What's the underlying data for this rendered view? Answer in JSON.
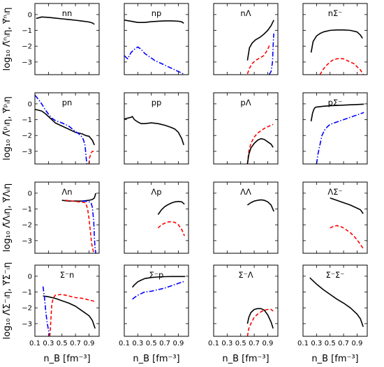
{
  "chart_data": {
    "type": "line",
    "layout": "4x4 grid of panels",
    "xlim": [
      0.1,
      1.05
    ],
    "ylim": [
      -3.8,
      0.7
    ],
    "x_ticks": [
      0.1,
      0.3,
      0.5,
      0.7,
      0.9
    ],
    "x_tick_labels": [
      "0.1",
      "0.3",
      "0.5",
      "0.7",
      "0.9"
    ],
    "y_ticks": [
      0,
      -1,
      -2,
      -3
    ],
    "y_tick_labels": [
      "0",
      "−1",
      "−2",
      "−3"
    ],
    "xlabel": "n_B [fm⁻³]",
    "row_ylabels": [
      "log₁₀ Λ̃ⁿᵢη, Υ̃ⁿᵢη",
      "log₁₀ Λ̃ᵖᵢη, Υ̃ᵖᵢη",
      "log₁₀ Λ̃Λᵢη, Υ̃Λᵢη",
      "log₁₀ Λ̃Σ⁻ᵢη, Υ̃Σ⁻ᵢη"
    ],
    "series_styles": {
      "black": {
        "color": "#000000",
        "dash": "solid"
      },
      "red": {
        "color": "#ff0000",
        "dash": "dashed"
      },
      "blue": {
        "color": "#0000ff",
        "dash": "dashdot"
      }
    },
    "panels": [
      {
        "title": "nn",
        "series": [
          {
            "style": "black",
            "x": [
              0.12,
              0.2,
              0.3,
              0.4,
              0.5,
              0.6,
              0.7,
              0.8,
              0.9,
              0.95,
              0.98
            ],
            "y": [
              -0.25,
              -0.15,
              -0.18,
              -0.22,
              -0.27,
              -0.31,
              -0.36,
              -0.41,
              -0.47,
              -0.53,
              -0.62
            ]
          }
        ]
      },
      {
        "title": "np",
        "series": [
          {
            "style": "black",
            "x": [
              0.1,
              0.2,
              0.3,
              0.4,
              0.5,
              0.6,
              0.7,
              0.8,
              0.9,
              0.95,
              0.98
            ],
            "y": [
              -0.35,
              -0.42,
              -0.5,
              -0.5,
              -0.45,
              -0.42,
              -0.4,
              -0.4,
              -0.42,
              -0.46,
              -0.55
            ]
          },
          {
            "style": "blue",
            "x": [
              0.1,
              0.15,
              0.2,
              0.25,
              0.3,
              0.35,
              0.4,
              0.45,
              0.5,
              0.55,
              0.6,
              0.65,
              0.7,
              0.75,
              0.8,
              0.85,
              0.9,
              0.95,
              0.99
            ],
            "y": [
              -2.6,
              -2.8,
              -2.4,
              -2.2,
              -2.05,
              -2.2,
              -2.45,
              -2.6,
              -2.75,
              -2.9,
              -3.0,
              -3.1,
              -3.2,
              -3.3,
              -3.4,
              -3.5,
              -3.6,
              -3.7,
              -3.8
            ]
          }
        ]
      },
      {
        "title": "nΛ",
        "series": [
          {
            "style": "black",
            "x": [
              0.6,
              0.63,
              0.67,
              0.72,
              0.78,
              0.84,
              0.9,
              0.95,
              0.99
            ],
            "y": [
              -2.9,
              -2.1,
              -1.8,
              -1.6,
              -1.45,
              -1.25,
              -1.0,
              -0.7,
              -0.35
            ]
          },
          {
            "style": "red",
            "x": [
              0.6,
              0.63,
              0.67,
              0.72,
              0.78,
              0.84,
              0.88,
              0.91,
              0.93
            ],
            "y": [
              -3.75,
              -3.4,
              -3.1,
              -2.9,
              -2.75,
              -2.6,
              -2.35,
              -2.1,
              -1.9
            ]
          },
          {
            "style": "blue",
            "x": [
              0.92,
              0.95,
              0.97,
              0.98,
              0.985,
              0.99
            ],
            "y": [
              -3.8,
              -3.6,
              -3.0,
              -2.0,
              -1.5,
              -1.2
            ]
          }
        ]
      },
      {
        "title": "nΣ⁻",
        "series": [
          {
            "style": "black",
            "x": [
              0.22,
              0.25,
              0.3,
              0.35,
              0.4,
              0.5,
              0.6,
              0.7,
              0.8,
              0.9,
              0.95,
              0.98
            ],
            "y": [
              -2.4,
              -1.7,
              -1.35,
              -1.2,
              -1.1,
              -1.0,
              -0.97,
              -0.97,
              -1.0,
              -1.1,
              -1.3,
              -1.5
            ]
          },
          {
            "style": "red",
            "x": [
              0.35,
              0.4,
              0.45,
              0.5,
              0.55,
              0.6,
              0.65,
              0.7,
              0.75,
              0.8,
              0.85,
              0.9,
              0.95,
              0.99
            ],
            "y": [
              -3.8,
              -3.45,
              -3.2,
              -3.0,
              -2.85,
              -2.8,
              -2.78,
              -2.8,
              -2.9,
              -3.0,
              -3.1,
              -3.3,
              -3.5,
              -3.8
            ]
          }
        ]
      },
      {
        "title": "pn",
        "series": [
          {
            "style": "black",
            "x": [
              0.1,
              0.15,
              0.2,
              0.25,
              0.3,
              0.4,
              0.5,
              0.6,
              0.7,
              0.8,
              0.85,
              0.9,
              0.95,
              0.98
            ],
            "y": [
              -0.35,
              -0.4,
              -0.45,
              -0.6,
              -0.8,
              -1.2,
              -1.4,
              -1.6,
              -1.8,
              -1.9,
              -2.0,
              -2.05,
              -2.3,
              -2.6
            ]
          },
          {
            "style": "blue",
            "x": [
              0.1,
              0.15,
              0.2,
              0.25,
              0.3,
              0.35,
              0.4,
              0.5,
              0.6,
              0.7,
              0.75,
              0.8,
              0.82,
              0.84,
              0.85,
              0.86,
              0.87
            ],
            "y": [
              0.55,
              0.3,
              0.0,
              -0.35,
              -0.65,
              -0.9,
              -1.05,
              -1.2,
              -1.4,
              -1.75,
              -1.9,
              -2.1,
              -2.3,
              -2.6,
              -3.0,
              -3.5,
              -3.8
            ]
          },
          {
            "style": "red",
            "x": [
              0.9,
              0.91,
              0.93,
              0.95,
              0.97
            ],
            "y": [
              -3.8,
              -3.4,
              -3.1,
              -3.0,
              -3.0
            ]
          }
        ]
      },
      {
        "title": "pp",
        "series": [
          {
            "style": "black",
            "x": [
              0.1,
              0.15,
              0.2,
              0.22,
              0.25,
              0.3,
              0.35,
              0.4,
              0.5,
              0.6,
              0.7,
              0.8,
              0.85,
              0.9,
              0.95,
              0.98
            ],
            "y": [
              -0.95,
              -0.9,
              -0.85,
              -0.8,
              -1.0,
              -1.15,
              -1.25,
              -1.25,
              -1.2,
              -1.25,
              -1.35,
              -1.5,
              -1.6,
              -1.8,
              -2.2,
              -2.6
            ]
          }
        ]
      },
      {
        "title": "pΛ",
        "series": [
          {
            "style": "red",
            "x": [
              0.6,
              0.62,
              0.65,
              0.7,
              0.75,
              0.8,
              0.85,
              0.9,
              0.95,
              0.98
            ],
            "y": [
              -3.8,
              -3.0,
              -2.5,
              -2.1,
              -1.85,
              -1.7,
              -1.55,
              -1.45,
              -1.35,
              -1.3
            ]
          },
          {
            "style": "black",
            "x": [
              0.6,
              0.62,
              0.65,
              0.7,
              0.75,
              0.8,
              0.85,
              0.9,
              0.95,
              0.98
            ],
            "y": [
              -3.8,
              -3.2,
              -2.8,
              -2.5,
              -2.3,
              -2.2,
              -2.25,
              -2.4,
              -2.55,
              -2.75
            ]
          }
        ]
      },
      {
        "title": "pΣ⁻",
        "series": [
          {
            "style": "black",
            "x": [
              0.22,
              0.24,
              0.26,
              0.28,
              0.3,
              0.4,
              0.5,
              0.6,
              0.7,
              0.8,
              0.9,
              1.0
            ],
            "y": [
              -1.1,
              -0.6,
              -0.35,
              -0.22,
              -0.2,
              -0.15,
              -0.12,
              -0.1,
              -0.08,
              -0.06,
              -0.04,
              -0.02
            ]
          },
          {
            "style": "blue",
            "x": [
              0.3,
              0.32,
              0.35,
              0.38,
              0.42,
              0.46,
              0.5,
              0.6,
              0.7,
              0.8,
              0.9,
              1.0
            ],
            "y": [
              -3.8,
              -3.2,
              -2.6,
              -2.0,
              -1.65,
              -1.45,
              -1.3,
              -1.15,
              -1.0,
              -0.85,
              -0.7,
              -0.55
            ]
          }
        ]
      },
      {
        "title": "Λn",
        "series": [
          {
            "style": "black",
            "x": [
              0.5,
              0.6,
              0.7,
              0.8,
              0.9,
              0.95,
              0.98,
              0.99,
              1.0
            ],
            "y": [
              -0.45,
              -0.5,
              -0.5,
              -0.5,
              -0.45,
              -0.4,
              -0.3,
              -0.15,
              0.0
            ]
          },
          {
            "style": "red",
            "x": [
              0.55,
              0.65,
              0.75,
              0.85,
              0.88,
              0.9,
              0.92,
              0.94,
              0.96,
              0.97
            ],
            "y": [
              -0.45,
              -0.5,
              -0.55,
              -0.6,
              -1.0,
              -1.6,
              -2.4,
              -3.2,
              -3.6,
              -3.8
            ]
          },
          {
            "style": "blue",
            "x": [
              0.8,
              0.85,
              0.9,
              0.93,
              0.95,
              0.97,
              0.98,
              0.99,
              1.0
            ],
            "y": [
              -0.5,
              -0.5,
              -0.55,
              -0.6,
              -0.9,
              -1.8,
              -2.8,
              -3.5,
              -3.8
            ]
          }
        ]
      },
      {
        "title": "Λp",
        "series": [
          {
            "style": "black",
            "x": [
              0.6,
              0.65,
              0.7,
              0.75,
              0.8,
              0.85,
              0.9,
              0.95,
              0.99
            ],
            "y": [
              -1.35,
              -1.05,
              -0.85,
              -0.72,
              -0.62,
              -0.55,
              -0.52,
              -0.55,
              -0.7
            ]
          },
          {
            "style": "red",
            "x": [
              0.6,
              0.65,
              0.7,
              0.75,
              0.8,
              0.85,
              0.9,
              0.95,
              0.99
            ],
            "y": [
              -2.2,
              -2.0,
              -1.9,
              -1.82,
              -1.8,
              -1.85,
              -2.0,
              -2.3,
              -2.7
            ]
          }
        ]
      },
      {
        "title": "ΛΛ",
        "series": [
          {
            "style": "black",
            "x": [
              0.6,
              0.65,
              0.7,
              0.75,
              0.8,
              0.85,
              0.9,
              0.95,
              0.99
            ],
            "y": [
              -0.75,
              -0.6,
              -0.5,
              -0.45,
              -0.42,
              -0.45,
              -0.55,
              -0.75,
              -1.15
            ]
          }
        ]
      },
      {
        "title": "ΛΣ⁻",
        "series": [
          {
            "style": "black",
            "x": [
              0.5,
              0.6,
              0.7,
              0.8,
              0.9,
              0.95,
              0.99
            ],
            "y": [
              -0.3,
              -0.45,
              -0.6,
              -0.75,
              -0.95,
              -1.05,
              -1.3
            ]
          },
          {
            "style": "red",
            "x": [
              0.5,
              0.55,
              0.6,
              0.65,
              0.7,
              0.75,
              0.8,
              0.85,
              0.9,
              0.95,
              0.99
            ],
            "y": [
              -2.2,
              -2.1,
              -2.05,
              -2.1,
              -2.2,
              -2.35,
              -2.5,
              -2.7,
              -2.95,
              -3.25,
              -3.5
            ]
          }
        ]
      },
      {
        "title": "Σ⁻n",
        "series": [
          {
            "style": "black",
            "x": [
              0.22,
              0.3,
              0.4,
              0.5,
              0.6,
              0.7,
              0.8,
              0.9,
              0.95,
              0.99
            ],
            "y": [
              -1.25,
              -1.3,
              -1.4,
              -1.55,
              -1.7,
              -1.9,
              -2.2,
              -2.5,
              -2.8,
              -3.3
            ]
          },
          {
            "style": "blue",
            "x": [
              0.22,
              0.24,
              0.26,
              0.28,
              0.3,
              0.31,
              0.32
            ],
            "y": [
              -0.65,
              -1.3,
              -2.2,
              -2.9,
              -3.4,
              -3.6,
              -3.8
            ]
          },
          {
            "style": "red",
            "x": [
              0.32,
              0.33,
              0.34,
              0.35,
              0.37,
              0.4,
              0.5,
              0.6,
              0.7,
              0.8,
              0.9,
              0.99
            ],
            "y": [
              -3.8,
              -3.2,
              -2.5,
              -1.8,
              -1.4,
              -1.2,
              -1.15,
              -1.25,
              -1.35,
              -1.4,
              -1.5,
              -1.6
            ]
          }
        ]
      },
      {
        "title": "Σ⁻p",
        "series": [
          {
            "style": "black",
            "x": [
              0.22,
              0.25,
              0.3,
              0.35,
              0.4,
              0.5,
              0.6,
              0.7,
              0.8,
              0.9,
              1.0
            ],
            "y": [
              -0.7,
              -0.55,
              -0.35,
              -0.25,
              -0.15,
              -0.08,
              -0.05,
              -0.03,
              -0.02,
              -0.02,
              -0.02
            ]
          },
          {
            "style": "blue",
            "x": [
              0.22,
              0.25,
              0.3,
              0.35,
              0.4,
              0.5,
              0.6,
              0.7,
              0.8,
              0.9,
              1.0
            ],
            "y": [
              -1.45,
              -1.35,
              -1.2,
              -1.1,
              -1.0,
              -0.95,
              -0.85,
              -0.75,
              -0.6,
              -0.45,
              -0.3
            ]
          }
        ]
      },
      {
        "title": "Σ⁻Λ",
        "series": [
          {
            "style": "black",
            "x": [
              0.6,
              0.62,
              0.65,
              0.7,
              0.75,
              0.8,
              0.85,
              0.9,
              0.95,
              0.98
            ],
            "y": [
              -3.0,
              -2.6,
              -2.3,
              -2.1,
              -2.05,
              -2.05,
              -2.15,
              -2.45,
              -2.9,
              -3.3
            ]
          },
          {
            "style": "red",
            "x": [
              0.6,
              0.62,
              0.65,
              0.7,
              0.75,
              0.8,
              0.85,
              0.9,
              0.95,
              0.98
            ],
            "y": [
              -3.8,
              -3.3,
              -3.0,
              -2.6,
              -2.4,
              -2.25,
              -2.15,
              -2.1,
              -2.1,
              -2.2
            ]
          }
        ]
      },
      {
        "title": "Σ⁻Σ⁻",
        "series": [
          {
            "style": "black",
            "x": [
              0.2,
              0.3,
              0.4,
              0.5,
              0.6,
              0.7,
              0.8,
              0.9,
              0.95,
              0.99
            ],
            "y": [
              -0.1,
              -0.5,
              -0.85,
              -1.15,
              -1.45,
              -1.7,
              -2.0,
              -2.4,
              -2.7,
              -3.2
            ]
          }
        ]
      }
    ]
  }
}
